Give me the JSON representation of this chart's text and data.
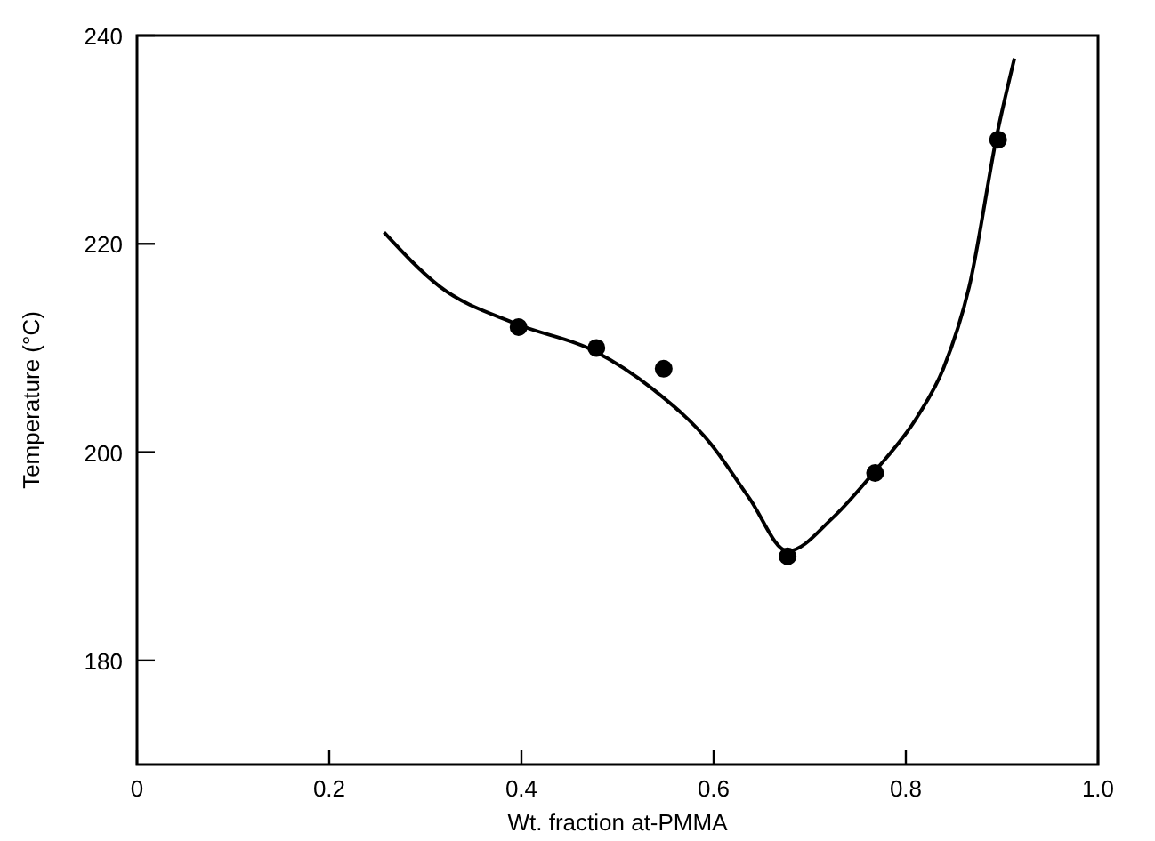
{
  "chart_data": {
    "type": "scatter",
    "xlabel": "Wt. fraction at-PMMA",
    "ylabel": "Temperature (°C)",
    "xlim": [
      0,
      1
    ],
    "xticks": [
      0,
      0.2,
      0.4,
      0.6,
      0.8,
      {
        "value": 1,
        "label": "1.0"
      }
    ],
    "ylim": [
      170,
      240
    ],
    "yticks": [
      180,
      200,
      220,
      240
    ],
    "marker": "circle",
    "series": [
      {
        "color": "#000000",
        "x": [
          0.397,
          0.478,
          0.548,
          0.677,
          0.768,
          0.896
        ],
        "values": [
          212,
          210,
          208,
          190,
          198,
          230
        ]
      },
      {
        "type": "line",
        "color": "#000000",
        "marker": "none",
        "x": [
          0.257,
          0.315,
          0.395,
          0.476,
          0.536,
          0.597,
          0.637,
          0.677,
          0.724,
          0.768,
          0.812,
          0.839,
          0.866,
          0.896,
          0.913
        ],
        "values": [
          221.1,
          215.9,
          212.3,
          209.7,
          206.1,
          200.8,
          195.6,
          190.5,
          193.7,
          198.2,
          203.4,
          208,
          215.9,
          231,
          237.8
        ]
      }
    ]
  }
}
